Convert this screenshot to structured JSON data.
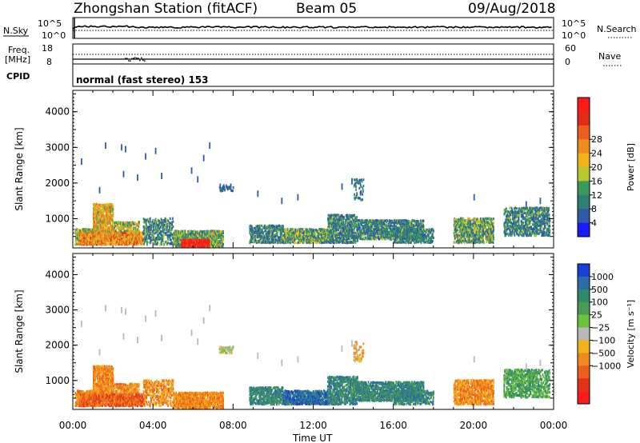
{
  "header": {
    "title": "Zhongshan Station (fitACF)",
    "beam": "Beam 05",
    "date": "09/Aug/2018"
  },
  "panels": {
    "nsky": {
      "left_label": "N.Sky",
      "left_ticks": [
        "10^5",
        "10^0"
      ],
      "right_ticks": [
        "10^5",
        "10^0"
      ],
      "right_label": "N.Search"
    },
    "freq": {
      "left_label_1": "Freq.",
      "left_label_2": "[MHz]",
      "left_ticks": [
        "18",
        "8"
      ],
      "right_ticks": [
        "60",
        "0"
      ],
      "right_label": "Nave"
    },
    "cpid": {
      "label": "CPID",
      "text": "normal (fast stereo) 153"
    }
  },
  "chart_data": [
    {
      "type": "heatmap",
      "name": "power",
      "ylabel": "Slant Range [km]",
      "xlim": [
        0,
        24
      ],
      "ylim": [
        180,
        4600
      ],
      "y_ticks": [
        1000,
        2000,
        3000,
        4000
      ],
      "x_ticks": [
        "00:00",
        "04:00",
        "08:00",
        "12:00",
        "16:00",
        "20:00",
        "00:00"
      ],
      "colorbar": {
        "label": "Power [dB]",
        "ticks": [
          "4",
          "8",
          "12",
          "16",
          "20",
          "24",
          "28"
        ],
        "colors": [
          "#1a1aff",
          "#2e5aa8",
          "#2e7f77",
          "#3a9a5c",
          "#b7c730",
          "#f2b21b",
          "#ee8a1e",
          "#ea5f1c",
          "#e32b17",
          "#ff1a1a"
        ]
      }
    },
    {
      "type": "heatmap",
      "name": "velocity",
      "ylabel": "Slant Range [km]",
      "xlabel": "Time UT",
      "xlim": [
        0,
        24
      ],
      "ylim": [
        180,
        4600
      ],
      "y_ticks": [
        1000,
        2000,
        3000,
        4000
      ],
      "x_ticks": [
        "00:00",
        "04:00",
        "08:00",
        "12:00",
        "16:00",
        "20:00",
        "00:00"
      ],
      "colorbar": {
        "label": "Velocity [m s⁻¹]",
        "ticks": [
          "1000",
          "500",
          "100",
          "25",
          "−25",
          "−100",
          "−500",
          "−1000"
        ],
        "colors": [
          "#1a3fd6",
          "#2f6aa8",
          "#2f8a6b",
          "#4a9a55",
          "#6ac43a",
          "#b8b8b8",
          "#f2b21b",
          "#f08a1e",
          "#ea5f1c",
          "#e3321a",
          "#ff1a1a"
        ]
      }
    }
  ],
  "colors": {
    "power_blue": "#2e5aa8",
    "power_green": "#3a9a5c",
    "power_orange": "#ee8a1e",
    "power_red": "#e32b17",
    "vel_blue": "#2f6aa8",
    "vel_green": "#2f8a6b",
    "vel_orange": "#f08a1e",
    "vel_grey": "#b8b8b8"
  }
}
